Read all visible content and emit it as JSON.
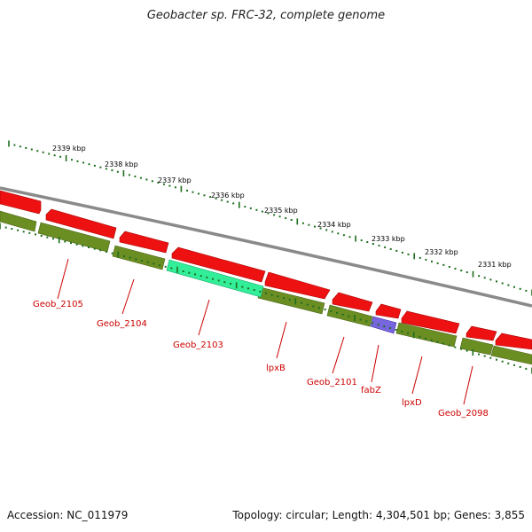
{
  "title": "Geobacter sp. FRC-32, complete genome",
  "footer": {
    "accession": "Accession: NC_011979",
    "summary": "Topology: circular; Length: 4,304,501 bp; Genes: 3,855"
  },
  "colors": {
    "forward_gene": "#ee1111",
    "reverse_gene": "#6b8e23",
    "highlight_gene": "#33ee99",
    "small_gene": "#7766dd",
    "backbone": "#888888",
    "ticks": "#1e6e1e",
    "label": "#cc0000"
  },
  "kbp_labels": [
    "2339 kbp",
    "2338 kbp",
    "2337 kbp",
    "2336 kbp",
    "2335 kbp",
    "2334 kbp",
    "2333 kbp",
    "2332 kbp",
    "2331 kbp"
  ],
  "gene_labels": [
    "Geob_2105",
    "Geob_2104",
    "Geob_2103",
    "lpxB",
    "Geob_2101",
    "fabZ",
    "lpxD",
    "Geob_2098"
  ]
}
